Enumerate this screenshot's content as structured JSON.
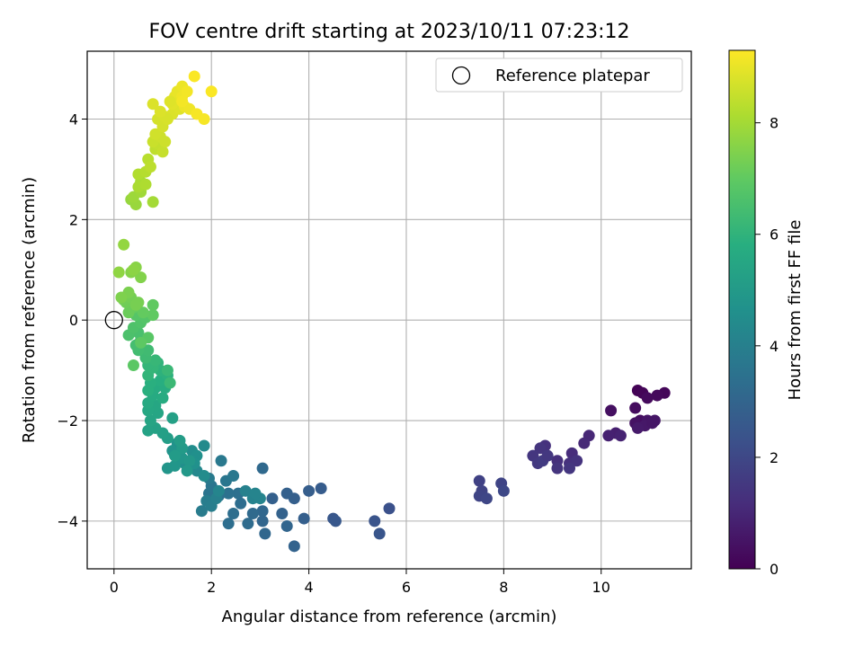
{
  "chart_data": {
    "type": "scatter",
    "title": "FOV centre drift starting at 2023/10/11 07:23:12",
    "xlabel": "Angular distance from reference (arcmin)",
    "ylabel": "Rotation from reference (arcmin)",
    "xlim": [
      -0.55,
      11.85
    ],
    "ylim": [
      -4.95,
      5.35
    ],
    "xticks": [
      0,
      2,
      4,
      6,
      8,
      10
    ],
    "yticks": [
      -4,
      -2,
      0,
      2,
      4
    ],
    "grid": true,
    "legend": {
      "placement": "top-right",
      "entries": [
        "Reference platepar"
      ]
    },
    "reference_point": {
      "x": 0,
      "y": 0,
      "marker": "open-circle",
      "color": "#000000"
    },
    "colorbar": {
      "label": "Hours from first FF file",
      "colormap": "viridis",
      "range": [
        0,
        9.3
      ],
      "ticks": [
        0,
        2,
        4,
        6,
        8
      ]
    },
    "points": [
      [
        10.75,
        -1.4,
        0.05
      ],
      [
        10.85,
        -1.45,
        0.1
      ],
      [
        11.3,
        -1.45,
        0.15
      ],
      [
        11.15,
        -1.5,
        0.2
      ],
      [
        10.95,
        -1.55,
        0.25
      ],
      [
        10.7,
        -1.75,
        0.3
      ],
      [
        10.2,
        -1.8,
        0.4
      ],
      [
        10.8,
        -2.0,
        0.35
      ],
      [
        10.7,
        -2.05,
        0.45
      ],
      [
        10.95,
        -2.0,
        0.5
      ],
      [
        11.1,
        -2.0,
        0.55
      ],
      [
        10.9,
        -2.1,
        0.6
      ],
      [
        10.75,
        -2.15,
        0.65
      ],
      [
        11.05,
        -2.05,
        0.55
      ],
      [
        10.3,
        -2.25,
        0.8
      ],
      [
        10.15,
        -2.3,
        0.85
      ],
      [
        10.4,
        -2.3,
        0.9
      ],
      [
        9.75,
        -2.3,
        1.0
      ],
      [
        9.65,
        -2.45,
        1.05
      ],
      [
        9.4,
        -2.65,
        1.15
      ],
      [
        9.1,
        -2.8,
        1.25
      ],
      [
        9.35,
        -2.85,
        1.3
      ],
      [
        9.5,
        -2.8,
        1.35
      ],
      [
        9.1,
        -2.95,
        1.4
      ],
      [
        9.35,
        -2.95,
        1.45
      ],
      [
        8.85,
        -2.5,
        1.3
      ],
      [
        8.75,
        -2.55,
        1.4
      ],
      [
        8.6,
        -2.7,
        1.45
      ],
      [
        8.7,
        -2.85,
        1.55
      ],
      [
        8.8,
        -2.8,
        1.6
      ],
      [
        8.9,
        -2.7,
        1.5
      ],
      [
        7.5,
        -3.2,
        1.8
      ],
      [
        7.55,
        -3.4,
        1.85
      ],
      [
        7.5,
        -3.5,
        1.9
      ],
      [
        7.65,
        -3.55,
        1.95
      ],
      [
        7.95,
        -3.25,
        1.9
      ],
      [
        8.0,
        -3.4,
        2.0
      ],
      [
        5.65,
        -3.75,
        2.3
      ],
      [
        5.35,
        -4.0,
        2.4
      ],
      [
        5.45,
        -4.25,
        2.45
      ],
      [
        4.5,
        -3.95,
        2.5
      ],
      [
        4.55,
        -4.0,
        2.55
      ],
      [
        4.25,
        -3.35,
        2.7
      ],
      [
        4.0,
        -3.4,
        2.75
      ],
      [
        3.7,
        -3.55,
        2.8
      ],
      [
        3.55,
        -3.45,
        2.85
      ],
      [
        3.25,
        -3.55,
        2.85
      ],
      [
        3.45,
        -3.85,
        2.9
      ],
      [
        3.9,
        -3.95,
        2.8
      ],
      [
        3.7,
        -4.5,
        2.95
      ],
      [
        3.55,
        -4.1,
        3.0
      ],
      [
        3.05,
        -4.0,
        3.05
      ],
      [
        3.1,
        -4.25,
        3.1
      ],
      [
        3.05,
        -3.8,
        3.1
      ],
      [
        3.05,
        -2.95,
        3.15
      ],
      [
        2.85,
        -3.85,
        3.2
      ],
      [
        2.75,
        -4.05,
        3.25
      ],
      [
        2.6,
        -3.65,
        3.3
      ],
      [
        2.45,
        -3.85,
        3.35
      ],
      [
        2.35,
        -4.05,
        3.35
      ],
      [
        2.55,
        -3.45,
        3.4
      ],
      [
        2.35,
        -3.45,
        3.45
      ],
      [
        2.15,
        -3.5,
        3.5
      ],
      [
        1.95,
        -3.45,
        3.55
      ],
      [
        2.0,
        -3.3,
        3.6
      ],
      [
        2.3,
        -3.2,
        3.65
      ],
      [
        2.45,
        -3.1,
        3.7
      ],
      [
        2.2,
        -2.8,
        3.75
      ],
      [
        1.95,
        -3.15,
        3.8
      ],
      [
        1.8,
        -3.8,
        3.85
      ],
      [
        1.9,
        -3.6,
        3.9
      ],
      [
        2.0,
        -3.7,
        3.95
      ],
      [
        2.1,
        -3.55,
        4.0
      ],
      [
        2.7,
        -3.4,
        4.05
      ],
      [
        2.85,
        -3.55,
        4.1
      ],
      [
        3.0,
        -3.55,
        4.15
      ],
      [
        2.9,
        -3.45,
        4.15
      ],
      [
        2.15,
        -3.4,
        4.2
      ],
      [
        1.7,
        -3.0,
        4.3
      ],
      [
        1.85,
        -2.5,
        4.4
      ],
      [
        1.85,
        -3.1,
        4.45
      ],
      [
        1.6,
        -2.6,
        4.5
      ],
      [
        1.45,
        -2.85,
        4.55
      ],
      [
        1.7,
        -2.7,
        4.6
      ],
      [
        1.65,
        -2.85,
        4.65
      ],
      [
        1.3,
        -2.45,
        4.7
      ],
      [
        1.2,
        -2.6,
        4.75
      ],
      [
        1.1,
        -2.95,
        4.8
      ],
      [
        1.25,
        -2.9,
        4.85
      ],
      [
        1.4,
        -2.75,
        4.85
      ],
      [
        1.55,
        -2.8,
        4.9
      ],
      [
        1.5,
        -3.0,
        4.95
      ],
      [
        1.4,
        -2.55,
        5.0
      ],
      [
        1.25,
        -2.7,
        5.05
      ],
      [
        1.35,
        -2.4,
        5.1
      ],
      [
        1.1,
        -2.35,
        5.15
      ],
      [
        1.0,
        -2.25,
        5.2
      ],
      [
        1.2,
        -1.95,
        5.25
      ],
      [
        0.85,
        -2.15,
        5.3
      ],
      [
        0.7,
        -2.2,
        5.35
      ],
      [
        0.75,
        -2.0,
        5.4
      ],
      [
        0.9,
        -1.85,
        5.45
      ],
      [
        0.85,
        -1.7,
        5.5
      ],
      [
        0.7,
        -1.8,
        5.55
      ],
      [
        0.7,
        -1.65,
        5.6
      ],
      [
        0.8,
        -1.5,
        5.65
      ],
      [
        1.0,
        -1.55,
        5.7
      ],
      [
        0.85,
        -1.35,
        5.7
      ],
      [
        1.05,
        -1.35,
        5.75
      ],
      [
        0.95,
        -1.2,
        5.8
      ],
      [
        0.7,
        -1.4,
        5.85
      ],
      [
        0.75,
        -1.25,
        5.85
      ],
      [
        1.1,
        -1.1,
        5.9
      ],
      [
        0.95,
        -1.0,
        5.95
      ],
      [
        0.9,
        -0.85,
        6.0
      ],
      [
        0.7,
        -1.1,
        6.05
      ],
      [
        0.8,
        -0.95,
        6.1
      ],
      [
        0.7,
        -0.9,
        6.1
      ],
      [
        0.85,
        -0.8,
        6.15
      ],
      [
        1.1,
        -1.0,
        6.2
      ],
      [
        1.15,
        -1.25,
        6.25
      ],
      [
        0.65,
        -0.75,
        6.3
      ],
      [
        0.7,
        -0.6,
        6.35
      ],
      [
        0.5,
        -0.6,
        6.4
      ],
      [
        0.45,
        -0.5,
        6.45
      ],
      [
        0.55,
        -0.4,
        6.5
      ],
      [
        0.5,
        -0.25,
        6.55
      ],
      [
        0.3,
        -0.3,
        6.6
      ],
      [
        0.4,
        -0.15,
        6.65
      ],
      [
        0.55,
        -0.05,
        6.7
      ],
      [
        0.65,
        0.05,
        6.75
      ],
      [
        0.45,
        0.1,
        6.8
      ],
      [
        0.7,
        -0.35,
        6.85
      ],
      [
        0.4,
        -0.9,
        6.9
      ],
      [
        0.55,
        -0.45,
        6.95
      ],
      [
        0.8,
        0.1,
        7.0
      ],
      [
        0.8,
        0.3,
        7.0
      ],
      [
        0.6,
        0.15,
        7.05
      ],
      [
        0.4,
        0.25,
        7.1
      ],
      [
        0.3,
        0.15,
        7.15
      ],
      [
        0.25,
        0.35,
        7.2
      ],
      [
        0.2,
        0.4,
        7.25
      ],
      [
        0.35,
        0.45,
        7.3
      ],
      [
        0.5,
        0.35,
        7.35
      ],
      [
        0.45,
        0.3,
        7.35
      ],
      [
        0.3,
        0.55,
        7.4
      ],
      [
        0.15,
        0.45,
        7.45
      ],
      [
        0.55,
        0.85,
        7.5
      ],
      [
        0.35,
        0.95,
        7.55
      ],
      [
        0.45,
        1.05,
        7.6
      ],
      [
        0.4,
        1.0,
        7.65
      ],
      [
        0.1,
        0.95,
        7.7
      ],
      [
        0.2,
        1.5,
        7.75
      ],
      [
        0.35,
        2.4,
        7.8
      ],
      [
        0.45,
        2.3,
        7.85
      ],
      [
        0.4,
        2.45,
        7.9
      ],
      [
        0.55,
        2.55,
        7.95
      ],
      [
        0.8,
        2.35,
        8.0
      ],
      [
        0.55,
        2.75,
        8.05
      ],
      [
        0.5,
        2.65,
        8.1
      ],
      [
        0.65,
        2.7,
        8.15
      ],
      [
        0.5,
        2.9,
        8.2
      ],
      [
        0.65,
        2.95,
        8.25
      ],
      [
        0.7,
        3.2,
        8.3
      ],
      [
        0.75,
        3.05,
        8.35
      ],
      [
        0.85,
        3.4,
        8.4
      ],
      [
        0.9,
        3.5,
        8.45
      ],
      [
        1.0,
        3.35,
        8.5
      ],
      [
        0.8,
        3.55,
        8.55
      ],
      [
        0.95,
        3.65,
        8.6
      ],
      [
        1.05,
        3.55,
        8.6
      ],
      [
        0.85,
        3.7,
        8.65
      ],
      [
        1.0,
        3.85,
        8.7
      ],
      [
        0.9,
        4.0,
        8.7
      ],
      [
        1.05,
        4.05,
        8.75
      ],
      [
        1.2,
        4.1,
        8.8
      ],
      [
        1.35,
        4.2,
        8.85
      ],
      [
        1.2,
        4.3,
        8.9
      ],
      [
        0.8,
        4.3,
        8.8
      ],
      [
        1.25,
        4.45,
        8.95
      ],
      [
        1.3,
        4.55,
        9.0
      ],
      [
        1.4,
        4.65,
        9.05
      ],
      [
        1.4,
        4.45,
        9.1
      ],
      [
        1.45,
        4.25,
        9.05
      ],
      [
        1.55,
        4.2,
        9.1
      ],
      [
        1.4,
        4.35,
        9.15
      ],
      [
        1.5,
        4.55,
        9.15
      ],
      [
        1.7,
        4.1,
        9.2
      ],
      [
        1.85,
        4.0,
        9.2
      ],
      [
        1.65,
        4.85,
        9.25
      ],
      [
        2.0,
        4.55,
        9.25
      ],
      [
        1.1,
        4.0,
        8.75
      ],
      [
        1.15,
        4.35,
        8.85
      ],
      [
        0.95,
        4.15,
        8.8
      ]
    ]
  }
}
